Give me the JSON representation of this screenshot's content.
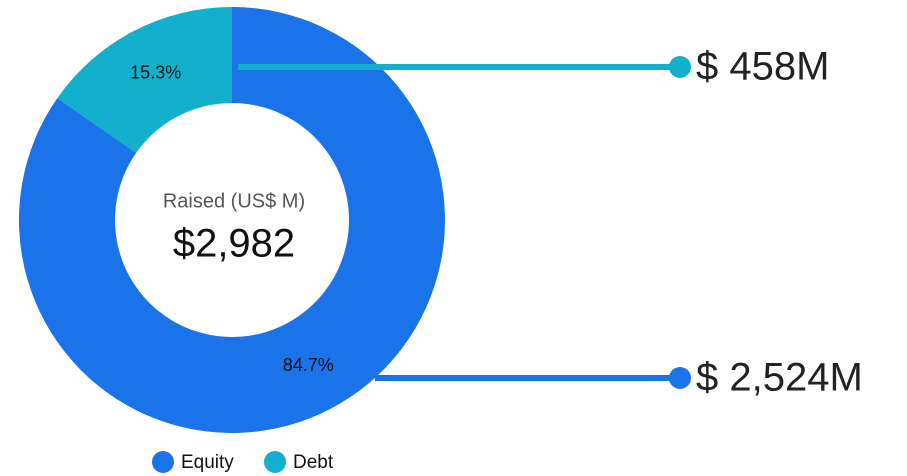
{
  "chart_data": {
    "type": "donut",
    "categories": [
      "Equity",
      "Debt"
    ],
    "values": [
      84.7,
      15.3
    ],
    "value_labels": [
      "84.7%",
      "15.3%"
    ],
    "colors": [
      "#1a73e8",
      "#12b0cc"
    ],
    "callouts": [
      "$ 2,524M",
      "$ 458M"
    ],
    "center_label": "Raised (US$ M)",
    "center_value": "$2,982",
    "legend": "bottom"
  }
}
